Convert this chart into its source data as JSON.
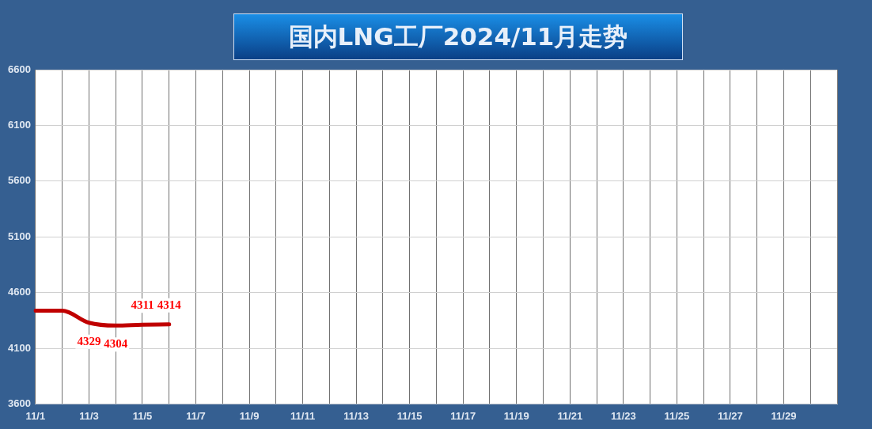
{
  "chart_data": {
    "type": "line",
    "title": "国内LNG工厂2024/11月走势",
    "categories": [
      "11/1",
      null,
      "11/3",
      null,
      "11/5",
      null,
      "11/7",
      null,
      "11/9",
      null,
      "11/11",
      null,
      "11/13",
      null,
      "11/15",
      null,
      "11/17",
      null,
      "11/19",
      null,
      "11/21",
      null,
      "11/23",
      null,
      "11/25",
      null,
      "11/27",
      null,
      "11/29",
      null,
      null
    ],
    "series": [
      {
        "color": "#c00000",
        "values": [
          4437,
          4437,
          4329,
          4304,
          4311,
          4314,
          null,
          null,
          null,
          null,
          null,
          null,
          null,
          null,
          null,
          null,
          null,
          null,
          null,
          null,
          null,
          null,
          null,
          null,
          null,
          null,
          null,
          null,
          null,
          null,
          null
        ],
        "value_labels": [
          null,
          null,
          "4329",
          "4304",
          "4311",
          "4314",
          null,
          null,
          null,
          null,
          null,
          null,
          null,
          null,
          null,
          null,
          null,
          null,
          null,
          null,
          null,
          null,
          null,
          null,
          null,
          null,
          null,
          null,
          null,
          null,
          null
        ]
      }
    ],
    "ylim": [
      3600,
      6600
    ],
    "yticks": [
      3600,
      4100,
      4600,
      5100,
      5600,
      6100,
      6600
    ],
    "grid": true,
    "marker": "none",
    "line_style": "solid"
  }
}
